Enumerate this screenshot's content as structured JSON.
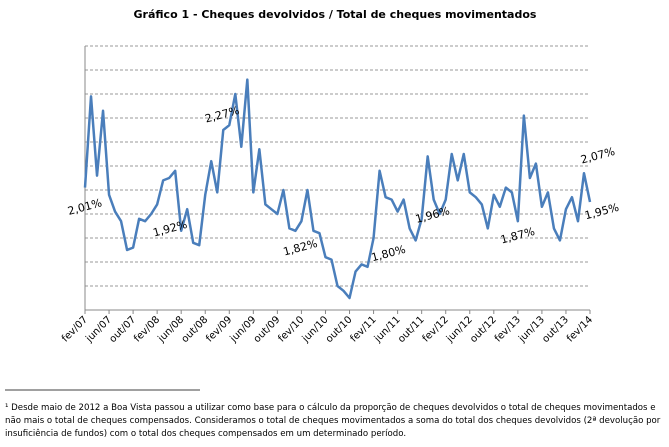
{
  "chart_data": {
    "type": "line",
    "title": "Gráfico  1 - Cheques devolvidos  / Total de cheques movimentados",
    "categories": [
      "fev/07",
      null,
      null,
      null,
      "jun/07",
      null,
      null,
      null,
      "out/07",
      null,
      null,
      null,
      "fev/08",
      null,
      null,
      null,
      "jun/08",
      null,
      null,
      null,
      "out/08",
      null,
      null,
      null,
      "fev/09",
      null,
      null,
      null,
      "jun/09",
      null,
      null,
      null,
      "out/09",
      null,
      null,
      null,
      "fev/10",
      null,
      null,
      null,
      "jun/10",
      null,
      null,
      null,
      "out/10",
      null,
      null,
      null,
      "fev/11",
      null,
      null,
      null,
      "jun/11",
      null,
      null,
      null,
      "out/11",
      null,
      null,
      null,
      "fev/12",
      null,
      null,
      null,
      "jun/12",
      null,
      null,
      null,
      "out/12",
      null,
      null,
      null,
      "fev/13",
      null,
      null,
      null,
      "jun/13",
      null,
      null,
      null,
      "out/13",
      null,
      null,
      null,
      "fev/14"
    ],
    "series": [
      {
        "color": "#4a7ebb",
        "values": [
          2.01,
          2.39,
          2.06,
          2.33,
          1.98,
          1.91,
          1.87,
          1.75,
          1.76,
          1.88,
          1.87,
          1.9,
          1.94,
          2.04,
          2.05,
          2.08,
          1.83,
          1.92,
          1.78,
          1.77,
          1.98,
          2.12,
          1.99,
          2.25,
          2.27,
          2.4,
          2.18,
          2.46,
          1.99,
          2.17,
          1.94,
          1.92,
          1.9,
          2.0,
          1.84,
          1.83,
          1.87,
          2.0,
          1.83,
          1.82,
          1.72,
          1.71,
          1.6,
          1.58,
          1.55,
          1.66,
          1.69,
          1.68,
          1.8,
          2.08,
          1.97,
          1.96,
          1.91,
          1.96,
          1.84,
          1.79,
          1.88,
          2.14,
          1.96,
          1.9,
          1.96,
          2.15,
          2.04,
          2.15,
          1.99,
          1.97,
          1.94,
          1.84,
          1.98,
          1.93,
          2.01,
          1.99,
          1.87,
          2.31,
          2.05,
          2.11,
          1.93,
          1.99,
          1.84,
          1.79,
          1.92,
          1.97,
          1.87,
          2.07,
          1.95
        ],
        "value_labels": [
          "2,01%",
          null,
          null,
          null,
          null,
          null,
          null,
          null,
          null,
          null,
          null,
          null,
          null,
          null,
          null,
          null,
          null,
          "1,92%",
          null,
          null,
          null,
          null,
          null,
          null,
          "2,27%",
          null,
          null,
          null,
          null,
          null,
          null,
          null,
          null,
          null,
          null,
          null,
          null,
          null,
          null,
          "1,82%",
          null,
          null,
          null,
          null,
          null,
          null,
          null,
          null,
          "1,80%",
          null,
          null,
          null,
          null,
          null,
          null,
          null,
          null,
          null,
          null,
          null,
          "1,96%",
          null,
          null,
          null,
          null,
          null,
          null,
          null,
          null,
          null,
          null,
          null,
          "1,87%",
          null,
          null,
          null,
          null,
          null,
          null,
          null,
          null,
          null,
          null,
          "2,07%",
          "1,95%"
        ]
      }
    ],
    "ylim": [
      1.5,
      2.6
    ],
    "yticks": [
      1.5,
      1.6,
      1.7,
      1.8,
      1.9,
      2.0,
      2.1,
      2.2,
      2.3,
      2.4,
      2.5,
      2.6
    ],
    "grid": true
  },
  "footnote": {
    "lines": [
      "¹ Desde maio de 2012 a Boa Vista passou a utilizar como base para o cálculo da proporção de cheques devolvidos o total de cheques movimentados e",
      "não mais o total de cheques compensados. Consideramos o total de cheques movimentados a soma do total dos cheques devolvidos (2ª devolução por",
      "insuficiência de fundos) com o total dos cheques compensados em um determinado período."
    ]
  }
}
